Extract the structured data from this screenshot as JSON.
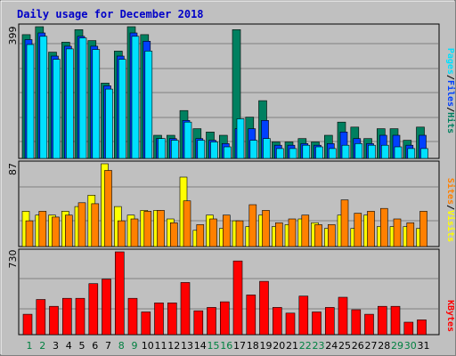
{
  "chart_data": {
    "type": "bar",
    "title": "Daily usage for December 2018",
    "categories": [
      "1",
      "2",
      "3",
      "4",
      "5",
      "6",
      "7",
      "8",
      "9",
      "10",
      "11",
      "12",
      "13",
      "14",
      "15",
      "16",
      "17",
      "18",
      "19",
      "20",
      "21",
      "22",
      "23",
      "24",
      "25",
      "26",
      "27",
      "28",
      "29",
      "30",
      "31"
    ],
    "weekend_days": [
      1,
      2,
      8,
      9,
      15,
      16,
      22,
      23,
      29,
      30
    ],
    "colors": {
      "background": "#c0c0c0",
      "title": "#0000c8",
      "weekday_label": "#000000",
      "weekend_label": "#008040",
      "hits": "#008060",
      "files": "#0040ff",
      "pages": "#00e0ff",
      "visits": "#ffff00",
      "sites": "#ff8000",
      "kbytes": "#ff0000"
    },
    "panels": [
      {
        "ymax_label": "399",
        "ylim": [
          0,
          399
        ],
        "legend": [
          "Pages",
          "Files",
          "Hits"
        ],
        "series": [
          {
            "name": "Hits",
            "values": [
              375,
              399,
              322,
              352,
              390,
              357,
              228,
              325,
              399,
              375,
              70,
              70,
              145,
              90,
              80,
              70,
              390,
              125,
              175,
              50,
              50,
              60,
              50,
              70,
              110,
              95,
              60,
              90,
              90,
              55,
              95
            ]
          },
          {
            "name": "Files",
            "values": [
              360,
              380,
              310,
              340,
              370,
              340,
              220,
              310,
              380,
              355,
              60,
              60,
              115,
              60,
              55,
              45,
              90,
              90,
              115,
              40,
              40,
              45,
              40,
              45,
              80,
              60,
              45,
              70,
              70,
              40,
              70
            ]
          },
          {
            "name": "Pages",
            "values": [
              345,
              370,
              300,
              332,
              365,
              330,
              210,
              300,
              370,
              325,
              60,
              55,
              110,
              55,
              50,
              35,
              120,
              55,
              60,
              30,
              30,
              40,
              35,
              30,
              40,
              45,
              40,
              40,
              35,
              30,
              30
            ]
          }
        ]
      },
      {
        "ymax_label": "87",
        "ylim": [
          0,
          87
        ],
        "legend": [
          "Sites",
          "Visits"
        ],
        "series": [
          {
            "name": "Visits",
            "values": [
              37,
              33,
              33,
              37,
              42,
              54,
              87,
              42,
              33,
              38,
              38,
              29,
              73,
              17,
              33,
              19,
              27,
              21,
              33,
              21,
              23,
              29,
              25,
              19,
              33,
              19,
              33,
              21,
              21,
              21,
              19
            ]
          },
          {
            "name": "Sites",
            "values": [
              27,
              37,
              31,
              33,
              46,
              45,
              80,
              27,
              29,
              37,
              38,
              25,
              48,
              23,
              29,
              33,
              27,
              44,
              38,
              25,
              29,
              33,
              23,
              23,
              49,
              35,
              37,
              40,
              29,
              25,
              37
            ]
          }
        ]
      },
      {
        "ymax_label": "730",
        "ylim": [
          0,
          730
        ],
        "legend": [
          "KBytes"
        ],
        "series": [
          {
            "name": "KBytes",
            "values": [
              180,
              310,
              250,
              320,
              320,
              450,
              490,
              730,
              320,
              200,
              280,
              280,
              460,
              210,
              240,
              290,
              650,
              350,
              470,
              240,
              190,
              340,
              200,
              240,
              330,
              220,
              180,
              250,
              250,
              110,
              130
            ]
          }
        ]
      }
    ]
  }
}
